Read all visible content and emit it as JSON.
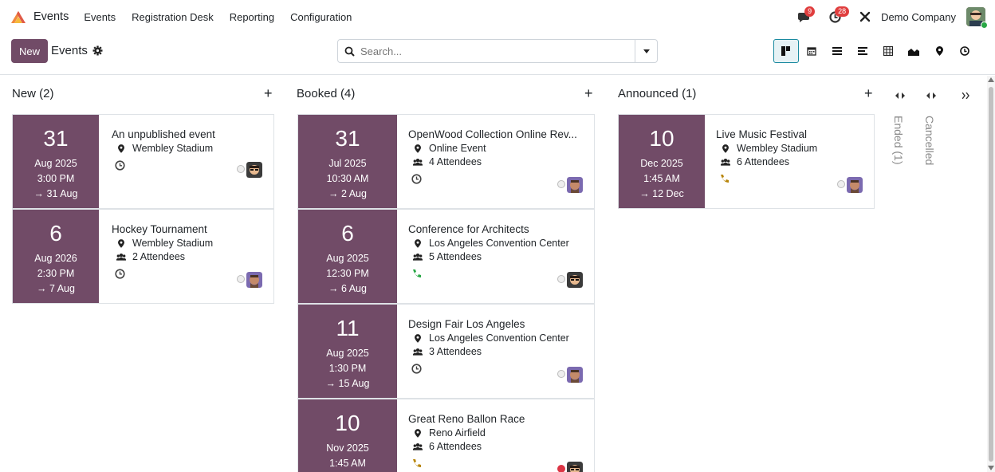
{
  "navbar": {
    "brand": "Events",
    "menu": [
      "Events",
      "Registration Desk",
      "Reporting",
      "Configuration"
    ],
    "messages_count": "9",
    "activities_count": "28",
    "company": "Demo Company"
  },
  "control": {
    "new_label": "New",
    "breadcrumb": "Events",
    "search_placeholder": "Search..."
  },
  "columns": [
    {
      "title": "New (2)"
    },
    {
      "title": "Booked (4)"
    },
    {
      "title": "Announced (1)"
    }
  ],
  "folded": [
    "Ended (1)",
    "Cancelled"
  ],
  "cards": {
    "new": [
      {
        "day": "31",
        "month": "Aug 2025",
        "time": "3:00 PM",
        "end": "→ 31 Aug",
        "title": "An unpublished event",
        "location": "Wembley Stadium",
        "attendees": "",
        "activity": "clock",
        "priority": "grey",
        "avatar": "a"
      },
      {
        "day": "6",
        "month": "Aug 2026",
        "time": "2:30 PM",
        "end": "→ 7 Aug",
        "title": "Hockey Tournament",
        "location": "Wembley Stadium",
        "attendees": "2 Attendees",
        "activity": "clock",
        "priority": "grey",
        "avatar": "b"
      }
    ],
    "booked": [
      {
        "day": "31",
        "month": "Jul 2025",
        "time": "10:30 AM",
        "end": "→ 2 Aug",
        "title": "OpenWood Collection Online Rev...",
        "location": "Online Event",
        "attendees": "4 Attendees",
        "activity": "clock",
        "priority": "grey",
        "avatar": "b"
      },
      {
        "day": "6",
        "month": "Aug 2025",
        "time": "12:30 PM",
        "end": "→ 6 Aug",
        "title": "Conference for Architects",
        "location": "Los Angeles Convention Center",
        "attendees": "5 Attendees",
        "activity": "phone-green",
        "priority": "grey",
        "avatar": "a"
      },
      {
        "day": "11",
        "month": "Aug 2025",
        "time": "1:30 PM",
        "end": "→ 15 Aug",
        "title": "Design Fair Los Angeles",
        "location": "Los Angeles Convention Center",
        "attendees": "3 Attendees",
        "activity": "clock",
        "priority": "grey",
        "avatar": "b"
      },
      {
        "day": "10",
        "month": "Nov 2025",
        "time": "1:45 AM",
        "end": "",
        "title": "Great Reno Ballon Race",
        "location": "Reno Airfield",
        "attendees": "6 Attendees",
        "activity": "phone-orange",
        "priority": "red",
        "avatar": "a"
      }
    ],
    "announced": [
      {
        "day": "10",
        "month": "Dec 2025",
        "time": "1:45 AM",
        "end": "→ 12 Dec",
        "title": "Live Music Festival",
        "location": "Wembley Stadium",
        "attendees": "6 Attendees",
        "activity": "phone-orange",
        "priority": "grey",
        "avatar": "b"
      }
    ]
  },
  "colors": {
    "accent": "#714b67",
    "active_view": "#1a8aa0"
  }
}
